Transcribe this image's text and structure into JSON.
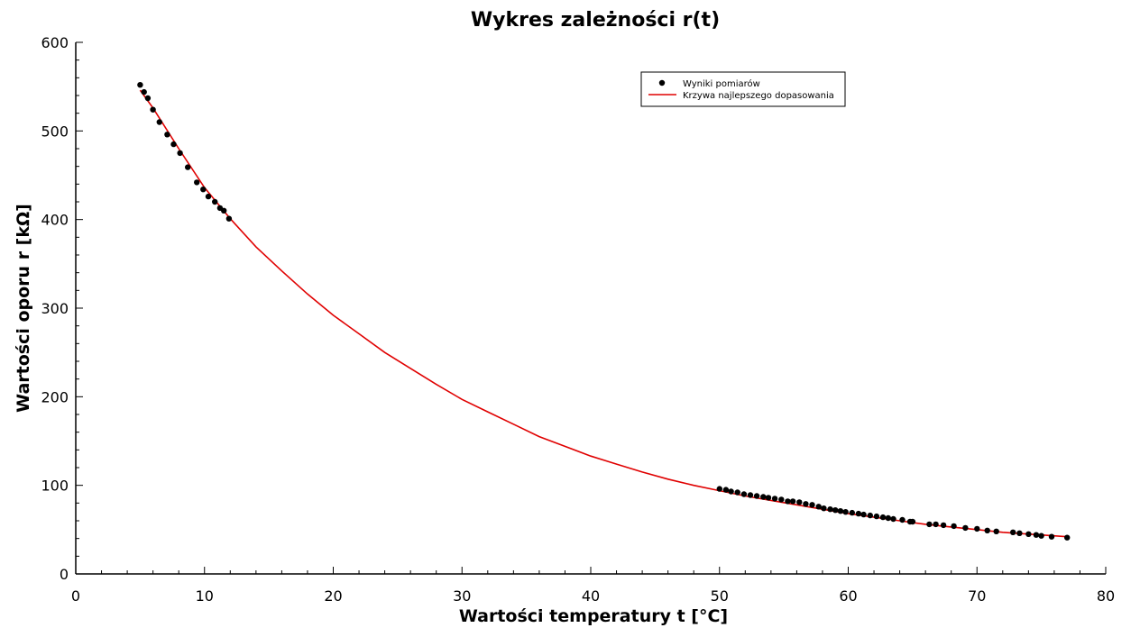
{
  "chart_data": {
    "type": "scatter",
    "title": "Wykres zależności r(t)",
    "xlabel": "Wartości temperatury t [°C]",
    "ylabel": "Wartości oporu r [kΩ]",
    "xlim": [
      0,
      80
    ],
    "ylim": [
      0,
      600
    ],
    "x_ticks": [
      0,
      10,
      20,
      30,
      40,
      50,
      60,
      70,
      80
    ],
    "y_ticks": [
      0,
      100,
      200,
      300,
      400,
      500,
      600
    ],
    "x_tick_labels": [
      "0",
      "10",
      "20",
      "30",
      "40",
      "50",
      "60",
      "70",
      "80"
    ],
    "y_tick_labels": [
      "0",
      "100",
      "200",
      "300",
      "400",
      "500",
      "600"
    ],
    "grid": false,
    "legend_position": "top-right",
    "colors": {
      "points": "#000000",
      "fit": "#e00000"
    },
    "series": [
      {
        "name": "Wyniki pomiarów",
        "kind": "scatter",
        "points": [
          [
            5.0,
            552
          ],
          [
            5.3,
            544
          ],
          [
            5.6,
            537
          ],
          [
            6.0,
            524
          ],
          [
            6.5,
            510
          ],
          [
            7.1,
            496
          ],
          [
            7.6,
            485
          ],
          [
            8.1,
            475
          ],
          [
            8.7,
            459
          ],
          [
            9.4,
            442
          ],
          [
            9.9,
            434
          ],
          [
            10.3,
            426
          ],
          [
            10.8,
            420
          ],
          [
            11.2,
            413
          ],
          [
            11.5,
            410
          ],
          [
            11.9,
            401
          ],
          [
            50.0,
            96
          ],
          [
            50.5,
            95
          ],
          [
            50.9,
            93
          ],
          [
            51.4,
            92
          ],
          [
            51.9,
            90
          ],
          [
            52.4,
            89
          ],
          [
            52.9,
            88
          ],
          [
            53.4,
            87
          ],
          [
            53.8,
            86
          ],
          [
            54.3,
            85
          ],
          [
            54.8,
            84
          ],
          [
            55.3,
            82
          ],
          [
            55.7,
            82
          ],
          [
            56.2,
            81
          ],
          [
            56.7,
            79
          ],
          [
            57.2,
            78
          ],
          [
            57.7,
            76
          ],
          [
            58.1,
            74
          ],
          [
            58.6,
            73
          ],
          [
            59.0,
            72
          ],
          [
            59.4,
            71
          ],
          [
            59.8,
            70
          ],
          [
            60.3,
            69
          ],
          [
            60.8,
            68
          ],
          [
            61.2,
            67
          ],
          [
            61.7,
            66
          ],
          [
            62.2,
            65
          ],
          [
            62.7,
            64
          ],
          [
            63.1,
            63
          ],
          [
            63.5,
            62
          ],
          [
            64.2,
            61
          ],
          [
            64.8,
            59
          ],
          [
            65.0,
            59
          ],
          [
            66.3,
            56
          ],
          [
            66.8,
            56
          ],
          [
            67.4,
            55
          ],
          [
            68.2,
            54
          ],
          [
            69.1,
            52
          ],
          [
            70.0,
            51
          ],
          [
            70.8,
            49
          ],
          [
            71.5,
            48
          ],
          [
            72.8,
            47
          ],
          [
            73.3,
            46
          ],
          [
            74.0,
            45
          ],
          [
            74.6,
            44
          ],
          [
            75.0,
            43
          ],
          [
            75.8,
            42
          ],
          [
            77.0,
            41
          ]
        ]
      },
      {
        "name": "Krzywa najlepszego dopasowania",
        "kind": "line",
        "points": [
          [
            5,
            546
          ],
          [
            6,
            526
          ],
          [
            8,
            480
          ],
          [
            10,
            436
          ],
          [
            12,
            401
          ],
          [
            14,
            369
          ],
          [
            16,
            342
          ],
          [
            18,
            316
          ],
          [
            20,
            292
          ],
          [
            22,
            271
          ],
          [
            24,
            250
          ],
          [
            26,
            232
          ],
          [
            28,
            214
          ],
          [
            30,
            197
          ],
          [
            32,
            183
          ],
          [
            34,
            169
          ],
          [
            36,
            155
          ],
          [
            38,
            144
          ],
          [
            40,
            133
          ],
          [
            42,
            124
          ],
          [
            44,
            115
          ],
          [
            46,
            107
          ],
          [
            48,
            100
          ],
          [
            50,
            94
          ],
          [
            52,
            88
          ],
          [
            54,
            83
          ],
          [
            56,
            78
          ],
          [
            58,
            73
          ],
          [
            60,
            68
          ],
          [
            62,
            64
          ],
          [
            64,
            60
          ],
          [
            66,
            56
          ],
          [
            68,
            53
          ],
          [
            70,
            50
          ],
          [
            72,
            47
          ],
          [
            74,
            45
          ],
          [
            77,
            42
          ]
        ]
      }
    ]
  }
}
